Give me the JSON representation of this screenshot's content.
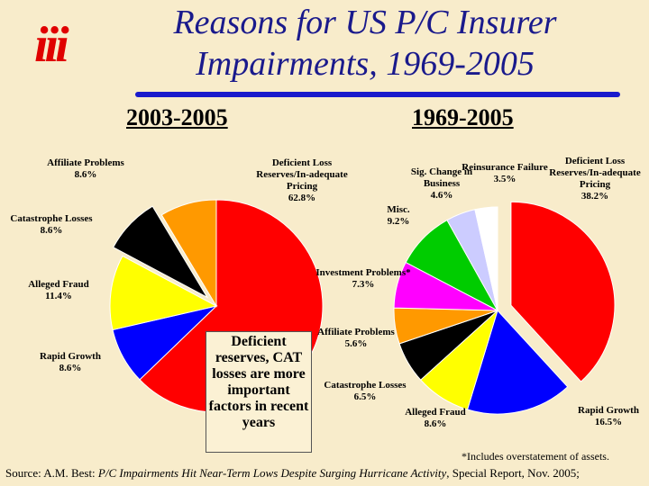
{
  "logo": "iii",
  "title": "Reasons for US P/C Insurer Impairments, 1969-2005",
  "callout": "Deficient reserves, CAT losses are more important factors in recent years",
  "footnote": "*Includes overstatement of assets.",
  "source": [
    "Source: A.M. Best: ",
    "P/C Impairments Hit Near-Term Lows Despite Surging Hurricane Activity",
    ", Special Report, Nov. 2005;"
  ],
  "chart_data": [
    {
      "type": "pie",
      "title": "2003-2005",
      "categories": [
        "Deficient Loss Reserves/In-adequate Pricing",
        "Rapid Growth",
        "Alleged Fraud",
        "Catastrophe Losses",
        "Affiliate Problems"
      ],
      "values": [
        62.8,
        8.6,
        11.4,
        8.6,
        8.6
      ],
      "value_labels": [
        "62.8%",
        "8.6%",
        "11.4%",
        "8.6%",
        "8.6%"
      ],
      "colors": [
        "#ff0000",
        "#0000ff",
        "#ffff00",
        "#000000",
        "#ff9900"
      ]
    },
    {
      "type": "pie",
      "title": "1969-2005",
      "categories": [
        "Deficient Loss Reserves/In-adequate Pricing",
        "Rapid Growth",
        "Alleged Fraud",
        "Catastrophe Losses",
        "Affiliate Problems",
        "Investment Problems*",
        "Misc.",
        "Sig. Change in Business",
        "Reinsurance Failure"
      ],
      "values": [
        38.2,
        16.5,
        8.6,
        6.5,
        5.6,
        7.3,
        9.2,
        4.6,
        3.5
      ],
      "value_labels": [
        "38.2%",
        "16.5%",
        "8.6%",
        "6.5%",
        "5.6%",
        "7.3%",
        "9.2%",
        "4.6%",
        "3.5%"
      ],
      "colors": [
        "#ff0000",
        "#0000ff",
        "#ffff00",
        "#000000",
        "#ff9900",
        "#ff00ff",
        "#00cc00",
        "#ccccff",
        "#ffffff"
      ]
    }
  ]
}
